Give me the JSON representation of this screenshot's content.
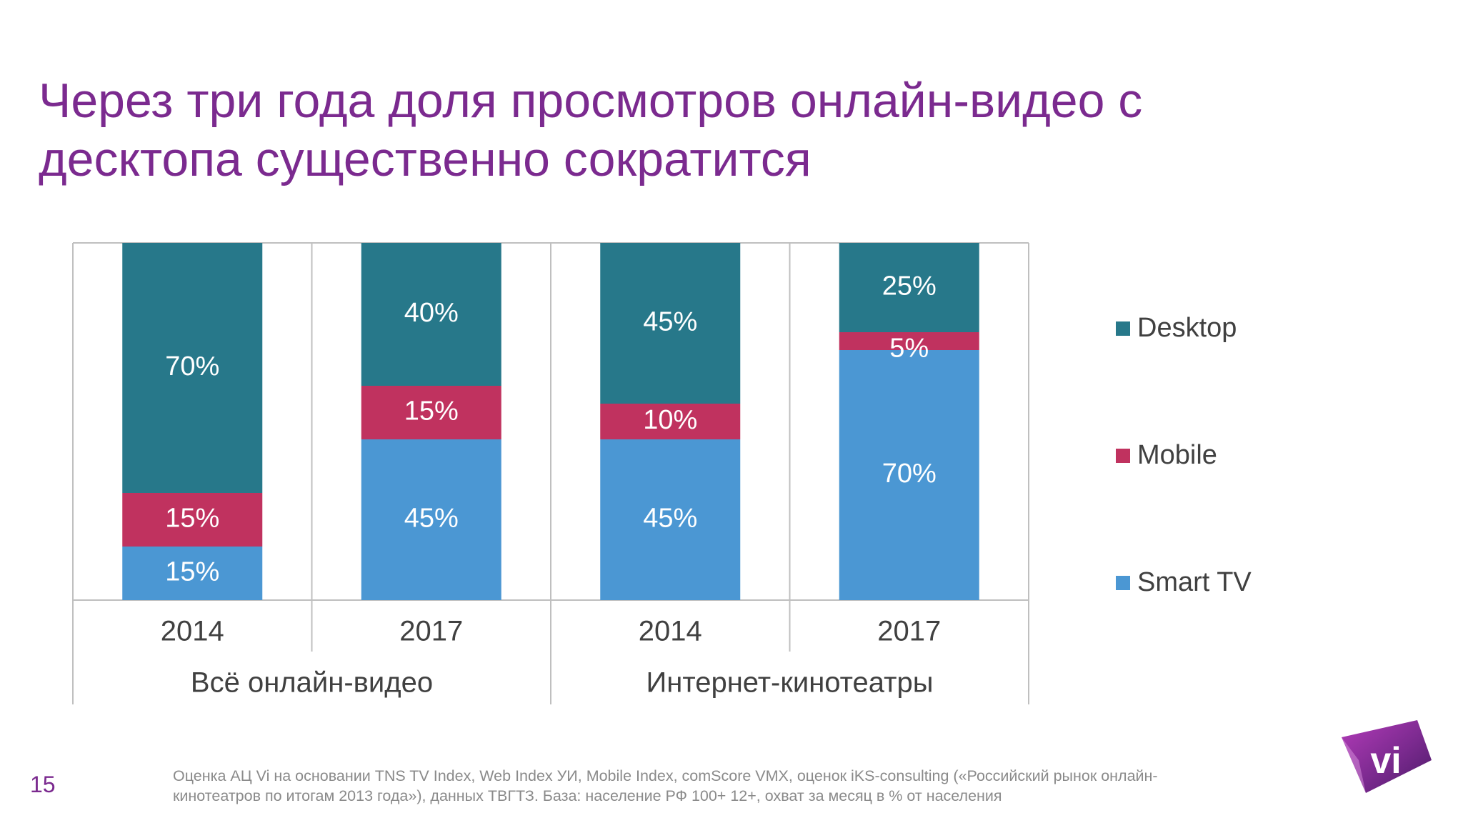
{
  "slide": {
    "title_line1": "Через три года доля просмотров онлайн-видео с",
    "title_line2": "десктопа существенно сократится",
    "page_number": "15",
    "source_line1": "Оценка АЦ Vi на основании TNS TV Index, Web Index УИ, Mobile Index, comScore VMX, оценок iKS-consulting («Российский рынок онлайн-",
    "source_line2": "кинотеатров по итогам 2013 года»), данных ТВГТЗ. База: население РФ 100+ 12+, охват за месяц в % от населения",
    "logo_text": "vi"
  },
  "chart_data": {
    "type": "bar",
    "stacked": true,
    "title": "",
    "xlabel": "",
    "ylabel": "",
    "ylim": [
      0,
      100
    ],
    "grid": false,
    "legend_position": "right",
    "categories": [
      "2014",
      "2017",
      "2014",
      "2017"
    ],
    "groups": [
      {
        "label": "Всё онлайн-видео",
        "categories": [
          0,
          1
        ]
      },
      {
        "label": "Интернет-кинотеатры",
        "categories": [
          2,
          3
        ]
      }
    ],
    "series": [
      {
        "name": "Smart TV",
        "color": "#4b97d3",
        "values": [
          15,
          45,
          45,
          70
        ],
        "labels": [
          "15%",
          "45%",
          "45%",
          "70%"
        ]
      },
      {
        "name": "Mobile",
        "color": "#c0325f",
        "values": [
          15,
          15,
          10,
          5
        ],
        "labels": [
          "15%",
          "15%",
          "10%",
          "5%"
        ]
      },
      {
        "name": "Desktop",
        "color": "#27788a",
        "values": [
          70,
          40,
          45,
          25
        ],
        "labels": [
          "70%",
          "40%",
          "45%",
          "25%"
        ]
      }
    ],
    "legend_order": [
      "Desktop",
      "Mobile",
      "Smart TV"
    ]
  }
}
